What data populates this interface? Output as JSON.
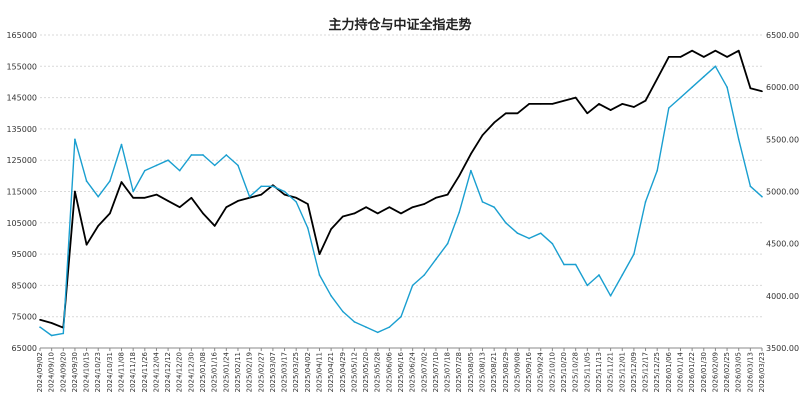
{
  "chart_data": {
    "type": "line",
    "title": "主力持仓与中证全指走势",
    "left_axis": {
      "ylim": [
        65000,
        165000
      ],
      "ticks": [
        "65000",
        "75000",
        "85000",
        "95000",
        "105000",
        "115000",
        "125000",
        "135000",
        "145000",
        "155000",
        "165000"
      ]
    },
    "right_axis": {
      "ylim": [
        3500,
        6500
      ],
      "ticks": [
        "3500.00",
        "4000.00",
        "4500.00",
        "5000.00",
        "5500.00",
        "6000.00",
        "6500.00"
      ]
    },
    "x_tick_labels": [
      "2024/09/02",
      "2024/09/10",
      "2024/09/20",
      "2024/09/30",
      "2024/10/15",
      "2024/10/23",
      "2024/10/31",
      "2024/11/08",
      "2024/11/18",
      "2024/11/26",
      "2024/12/04",
      "2024/12/12",
      "2024/12/20",
      "2024/12/30",
      "2025/01/08",
      "2025/01/16",
      "2025/01/24",
      "2025/02/11",
      "2025/02/19",
      "2025/02/27",
      "2025/03/07",
      "2025/03/17",
      "2025/03/25",
      "2025/04/02",
      "2025/04/11",
      "2025/04/21",
      "2025/04/29",
      "2025/05/12",
      "2025/05/20",
      "2025/05/28",
      "2025/06/06",
      "2025/06/16",
      "2025/06/24",
      "2025/07/02",
      "2025/07/10",
      "2025/07/18",
      "2025/07/28",
      "2025/08/05",
      "2025/08/13",
      "2025/08/21",
      "2025/08/29",
      "2025/09/08",
      "2025/09/16",
      "2025/09/24",
      "2025/10/10",
      "2025/10/20",
      "2025/10/28",
      "2025/11/05",
      "2025/11/13",
      "2025/11/21",
      "2025/12/01",
      "2025/12/09",
      "2025/12/17",
      "2025/12/25",
      "2026/01/06",
      "2026/01/14",
      "2026/01/22",
      "2026/01/30",
      "2026/02/09",
      "2026/02/25",
      "2026/03/05",
      "2026/03/13",
      "2026/03/23"
    ],
    "grid": true,
    "series": [
      {
        "axis": "left",
        "color": "#000000",
        "x_tick_index": [
          0,
          1,
          2,
          3,
          4,
          5,
          6,
          7,
          8,
          9,
          10,
          11,
          12,
          13,
          14,
          15,
          16,
          17,
          18,
          19,
          20,
          21,
          22,
          23,
          24,
          25,
          26,
          27,
          28,
          29,
          30,
          31,
          32,
          33,
          34,
          35,
          36,
          37,
          38,
          39,
          40,
          41,
          42,
          43,
          44,
          45,
          46,
          47,
          48,
          49,
          50,
          51,
          52,
          53,
          54,
          55,
          56,
          57,
          58,
          59,
          60,
          61,
          62
        ],
        "values": [
          74000,
          73000,
          71500,
          115000,
          98000,
          104000,
          108000,
          118000,
          113000,
          113000,
          114000,
          112000,
          110000,
          113000,
          108000,
          104000,
          110000,
          112000,
          113000,
          114000,
          117000,
          114000,
          113000,
          111000,
          95000,
          103000,
          107000,
          108000,
          110000,
          108000,
          110000,
          108000,
          110000,
          111000,
          113000,
          114000,
          120000,
          127000,
          133000,
          137000,
          140000,
          140000,
          143000,
          143000,
          143000,
          144000,
          145000,
          140000,
          143000,
          141000,
          143000,
          142000,
          144000,
          151000,
          158000,
          158000,
          160000,
          158000,
          160000,
          158000,
          160000,
          148000,
          147000
        ]
      },
      {
        "axis": "right",
        "color": "#1a9fd0",
        "x_tick_index": [
          0,
          1,
          2,
          3,
          4,
          5,
          6,
          7,
          8,
          9,
          10,
          11,
          12,
          13,
          14,
          15,
          16,
          17,
          18,
          19,
          20,
          21,
          22,
          23,
          24,
          25,
          26,
          27,
          28,
          29,
          30,
          31,
          32,
          33,
          34,
          35,
          36,
          37,
          38,
          39,
          40,
          41,
          42,
          43,
          44,
          45,
          46,
          47,
          48,
          49,
          50,
          51,
          52,
          53,
          54,
          55,
          56,
          57,
          58,
          59,
          60,
          61,
          62
        ],
        "values": [
          3700,
          3620,
          3640,
          5500,
          5100,
          4950,
          5100,
          5450,
          5000,
          5200,
          5250,
          5300,
          5200,
          5350,
          5350,
          5250,
          5350,
          5250,
          4950,
          5050,
          5050,
          5000,
          4900,
          4650,
          4200,
          4000,
          3850,
          3750,
          3700,
          3650,
          3700,
          3800,
          4100,
          4200,
          4350,
          4500,
          4800,
          5200,
          4900,
          4850,
          4700,
          4600,
          4550,
          4600,
          4500,
          4300,
          4300,
          4100,
          4200,
          4000,
          4200,
          4400,
          4900,
          5200,
          5800,
          5900,
          6000,
          6100,
          6200,
          6000,
          5500,
          5050,
          4950
        ]
      }
    ]
  }
}
